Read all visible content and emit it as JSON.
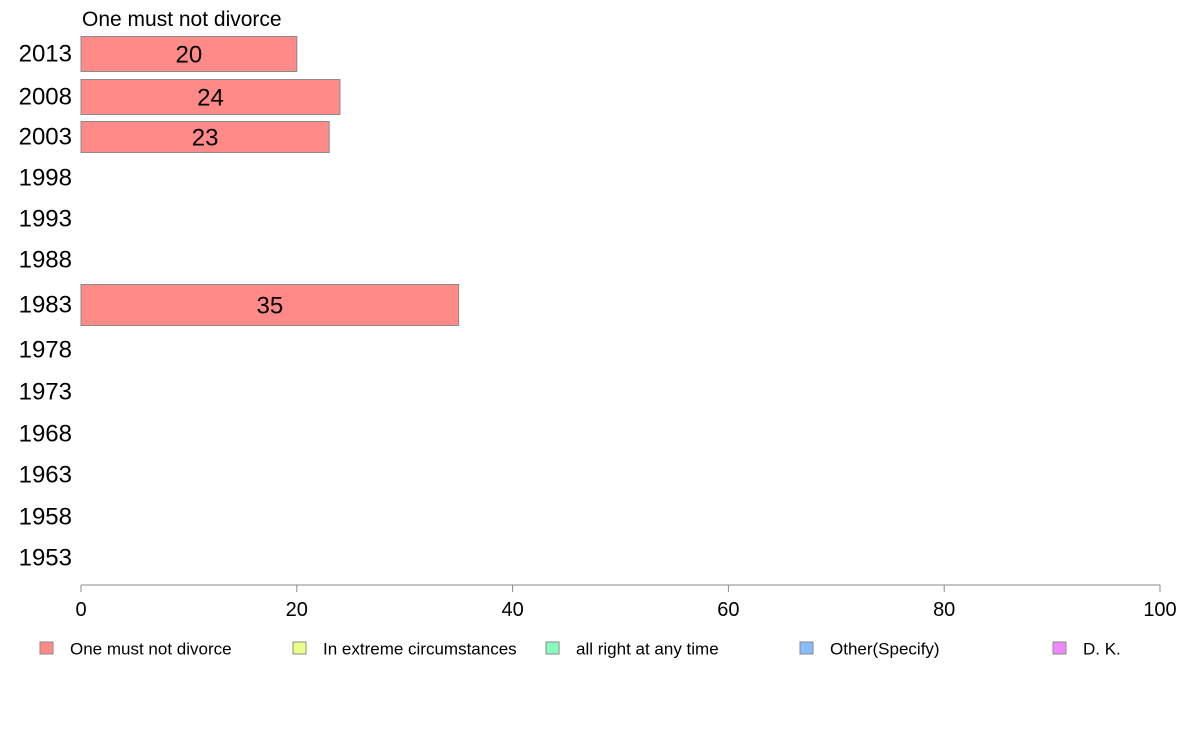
{
  "chart_data": {
    "type": "bar",
    "orientation": "horizontal",
    "title": "One must not divorce",
    "categories": [
      "2013",
      "2008",
      "2003",
      "1998",
      "1993",
      "1988",
      "1983",
      "1978",
      "1973",
      "1968",
      "1963",
      "1958",
      "1953"
    ],
    "series": [
      {
        "name": "One must not divorce",
        "color": "#ff8a88",
        "values": [
          20,
          24,
          23,
          null,
          null,
          null,
          35,
          null,
          null,
          null,
          null,
          null,
          null
        ]
      }
    ],
    "xlim": [
      0,
      100
    ],
    "xticks": [
      0,
      20,
      40,
      60,
      80,
      100
    ],
    "grid": false,
    "legend_position": "bottom",
    "legend": [
      {
        "label": "One must not divorce",
        "color": "#ff8a88"
      },
      {
        "label": "In extreme circumstances",
        "color": "#eeff88"
      },
      {
        "label": "all right at any time",
        "color": "#88ffbb"
      },
      {
        "label": "Other(Specify)",
        "color": "#88bbff"
      },
      {
        "label": "D. K.",
        "color": "#ee88ff"
      }
    ]
  }
}
